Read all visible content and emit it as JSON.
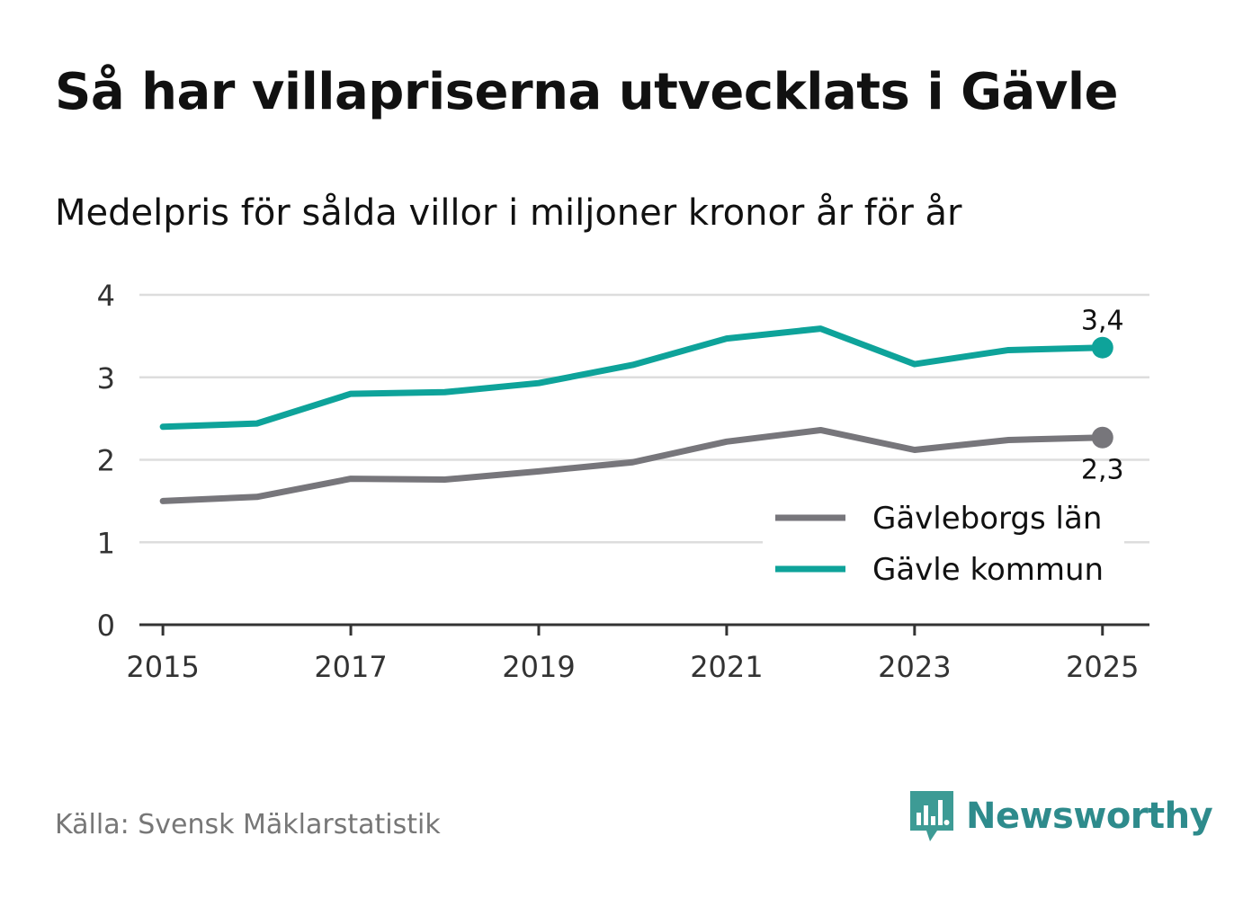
{
  "header": {
    "title": "Så har villapriserna utvecklats i Gävle",
    "subtitle": "Medelpris för sålda villor i miljoner kronor år för år"
  },
  "footer": {
    "source": "Källa: Svensk Mäklarstatistik",
    "brand": "Newsworthy"
  },
  "colors": {
    "county": "#77767b",
    "municipality": "#0ea39a",
    "grid": "#dddddd",
    "axis": "#333333",
    "brand": "#2e8b8c"
  },
  "chart_data": {
    "type": "line",
    "title": "Så har villapriserna utvecklats i Gävle",
    "subtitle": "Medelpris för sålda villor i miljoner kronor år för år",
    "xlabel": "",
    "ylabel": "",
    "x": [
      2015,
      2016,
      2017,
      2018,
      2019,
      2020,
      2021,
      2022,
      2023,
      2024,
      2025
    ],
    "xlim": [
      2014.75,
      2025.5
    ],
    "ylim": [
      0,
      4
    ],
    "y_ticks": [
      "0",
      "1",
      "2",
      "3",
      "4"
    ],
    "x_ticks": [
      "2015",
      "2017",
      "2019",
      "2021",
      "2023",
      "2025"
    ],
    "grid": true,
    "legend_position": "bottom-right",
    "series": [
      {
        "name": "Gävleborgs län",
        "color": "#77767b",
        "values": [
          1.5,
          1.55,
          1.77,
          1.76,
          1.86,
          1.97,
          2.22,
          2.36,
          2.12,
          2.24,
          2.27
        ],
        "end_label": "2,3",
        "end_label_position": "below"
      },
      {
        "name": "Gävle kommun",
        "color": "#0ea39a",
        "values": [
          2.4,
          2.44,
          2.8,
          2.82,
          2.93,
          3.15,
          3.47,
          3.59,
          3.16,
          3.33,
          3.36
        ],
        "end_label": "3,4",
        "end_label_position": "above"
      }
    ]
  }
}
